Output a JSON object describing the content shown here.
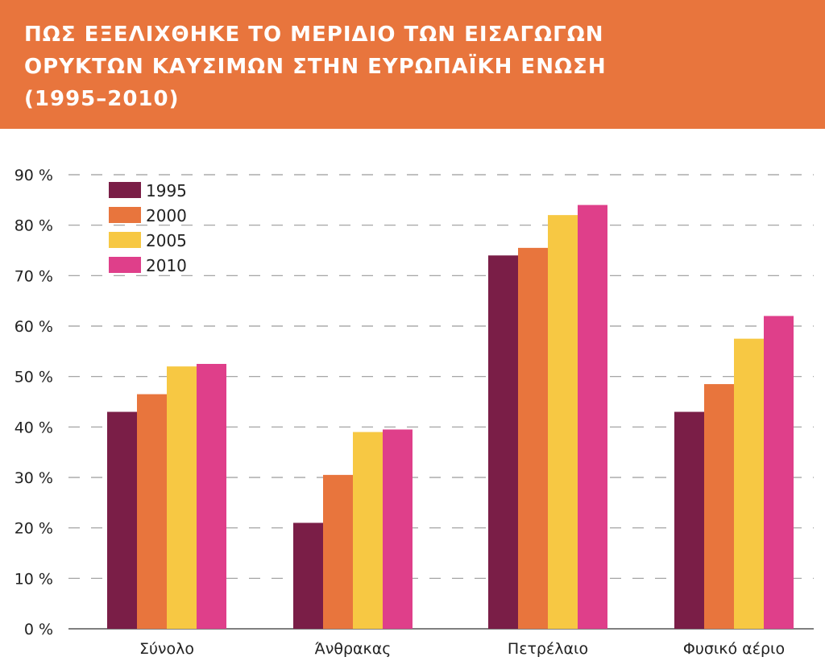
{
  "title_lines": [
    "ΠΩΣ ΕΞΕΛΙΧΘΗΚΕ ΤΟ ΜΕΡΙΔΙΟ ΤΩΝ ΕΙΣΑΓΩΓΩΝ",
    "ΟΡΥΚΤΩΝ ΚΑΥΣΙΜΩΝ ΣΤΗΝ ΕΥΡΩΠΑΪΚΗ ΕΝΩΣΗ",
    "(1995–2010)"
  ],
  "colors": {
    "header": "#e8753d",
    "series": [
      "#7a1e47",
      "#e8753d",
      "#f7c843",
      "#df3f8a"
    ]
  },
  "chart_data": {
    "type": "bar",
    "title": "ΠΩΣ ΕΞΕΛΙΧΘΗΚΕ ΤΟ ΜΕΡΙΔΙΟ ΤΩΝ ΕΙΣΑΓΩΓΩΝ ΟΡΥΚΤΩΝ ΚΑΥΣΙΜΩΝ ΣΤΗΝ ΕΥΡΩΠΑΪΚΗ ΕΝΩΣΗ (1995–2010)",
    "categories": [
      "Σύνολο",
      "Άνθρακας",
      "Πετρέλαιο",
      "Φυσικό αέριο"
    ],
    "series": [
      {
        "name": "1995",
        "values": [
          43,
          21,
          74,
          43
        ]
      },
      {
        "name": "2000",
        "values": [
          46.5,
          30.5,
          75.5,
          48.5
        ]
      },
      {
        "name": "2005",
        "values": [
          52,
          39,
          82,
          57.5
        ]
      },
      {
        "name": "2010",
        "values": [
          52.5,
          39.5,
          84,
          62
        ]
      }
    ],
    "y_ticks": [
      "0 %",
      "10 %",
      "20 %",
      "30 %",
      "40 %",
      "50 %",
      "60 %",
      "70 %",
      "80 %",
      "90 %"
    ],
    "ylim": [
      0,
      90
    ],
    "grid": true,
    "legend_position": "top-left",
    "xlabel": "",
    "ylabel": ""
  }
}
